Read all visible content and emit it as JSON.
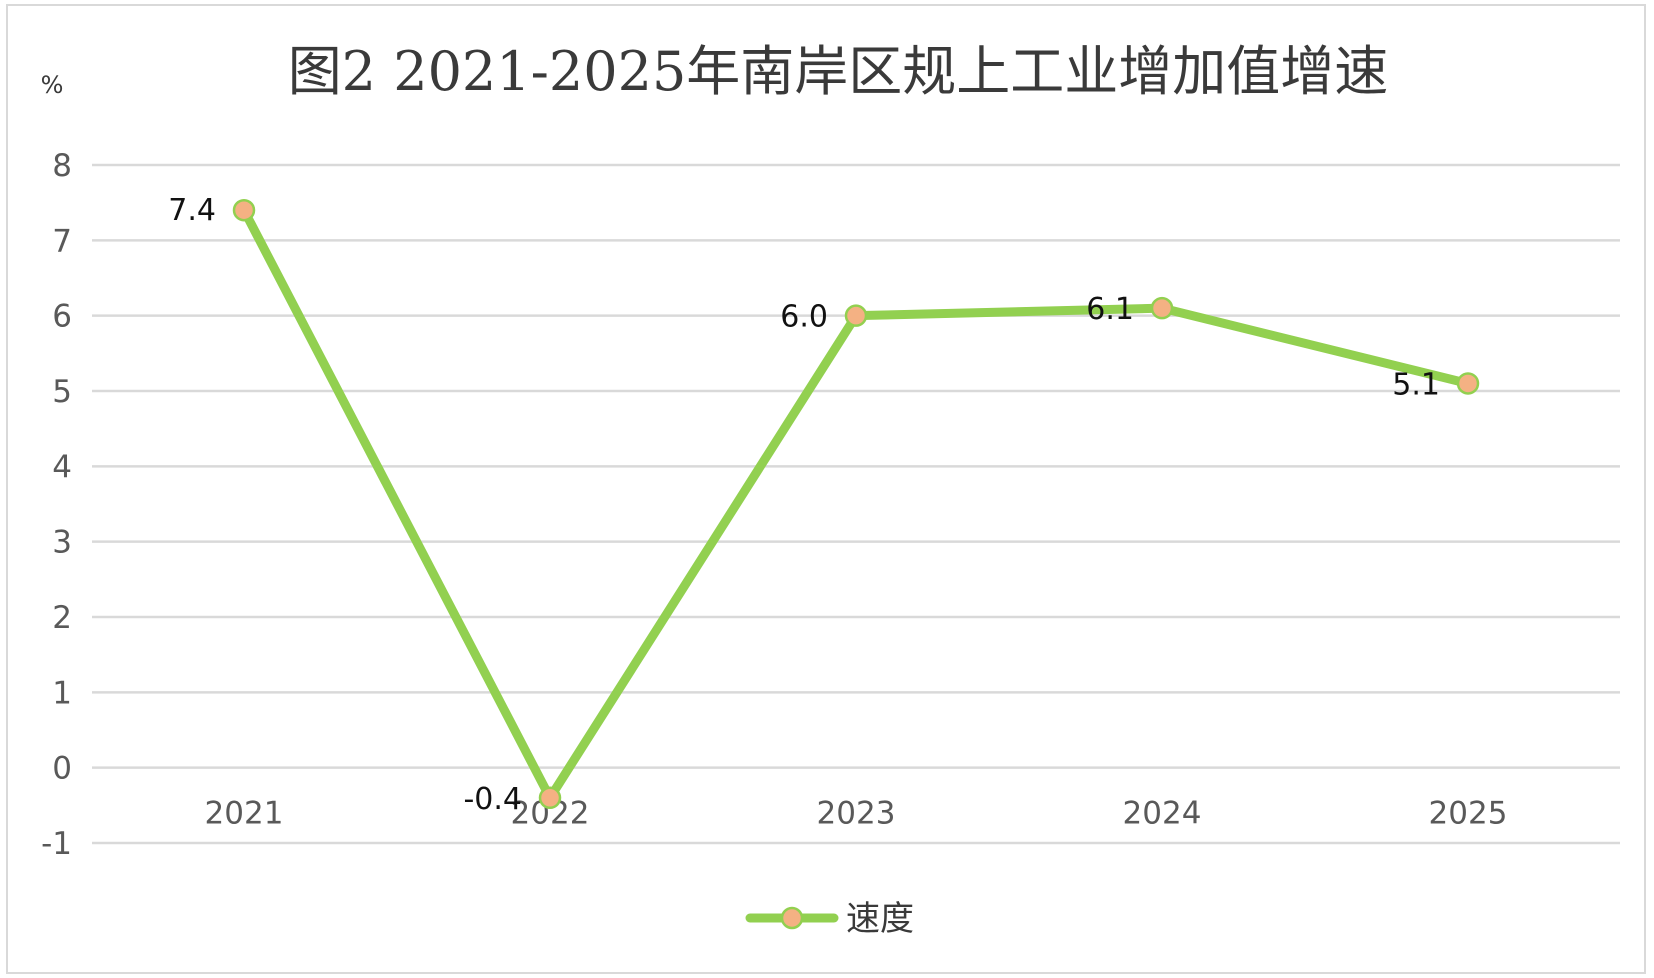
{
  "chart_data": {
    "type": "line",
    "title": "图2   2021-2025年南岸区规上工业增加值增速",
    "unit_label": "%",
    "categories": [
      "2021",
      "2022",
      "2023",
      "2024",
      "2025"
    ],
    "series": [
      {
        "name": "速度",
        "values": [
          7.4,
          -0.4,
          6.0,
          6.1,
          5.1
        ],
        "labels": [
          "7.4",
          "-0.4",
          "6.0",
          "6.1",
          "5.1"
        ]
      }
    ],
    "ylim": [
      -1,
      8
    ],
    "yticks": [
      8,
      7,
      6,
      5,
      4,
      3,
      2,
      1,
      0,
      -1
    ],
    "grid": true,
    "legend_position": "bottom",
    "colors": {
      "line": "#92d050",
      "marker_fill": "#f4b183",
      "marker_stroke": "#92d050",
      "grid": "#d9d9d9"
    }
  }
}
